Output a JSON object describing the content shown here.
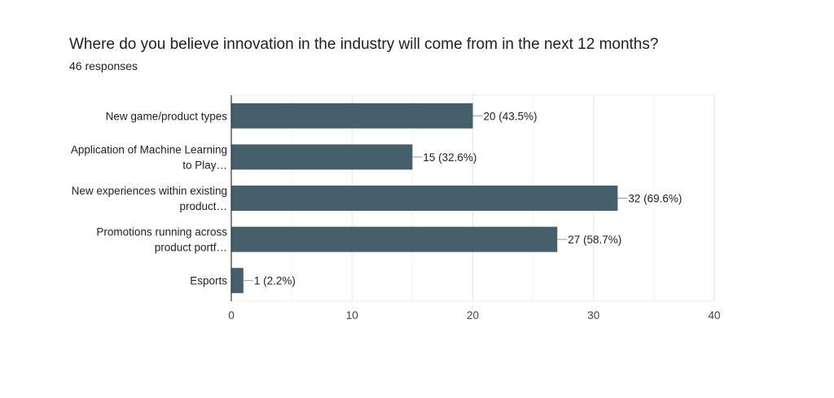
{
  "chart_data": {
    "type": "bar",
    "orientation": "horizontal",
    "title": "Where do you believe innovation in the industry will come from in the next 12 months?",
    "subtitle": "46 responses",
    "categories": [
      [
        "New game/product types"
      ],
      [
        "Application of Machine Learning",
        "to Play…"
      ],
      [
        "New experiences within existing",
        "product…"
      ],
      [
        "Promotions running across",
        "product portf…"
      ],
      [
        "Esports"
      ]
    ],
    "values": [
      20,
      15,
      32,
      27,
      1
    ],
    "data_labels": [
      "20 (43.5%)",
      "15 (32.6%)",
      "32 (69.6%)",
      "27 (58.7%)",
      "1 (2.2%)"
    ],
    "xlim": [
      0,
      40
    ],
    "xticks": [
      0,
      10,
      20,
      30,
      40
    ],
    "minor_grid": [
      5,
      15,
      25,
      35
    ],
    "grid": true,
    "bar_color": "#455f6b"
  }
}
